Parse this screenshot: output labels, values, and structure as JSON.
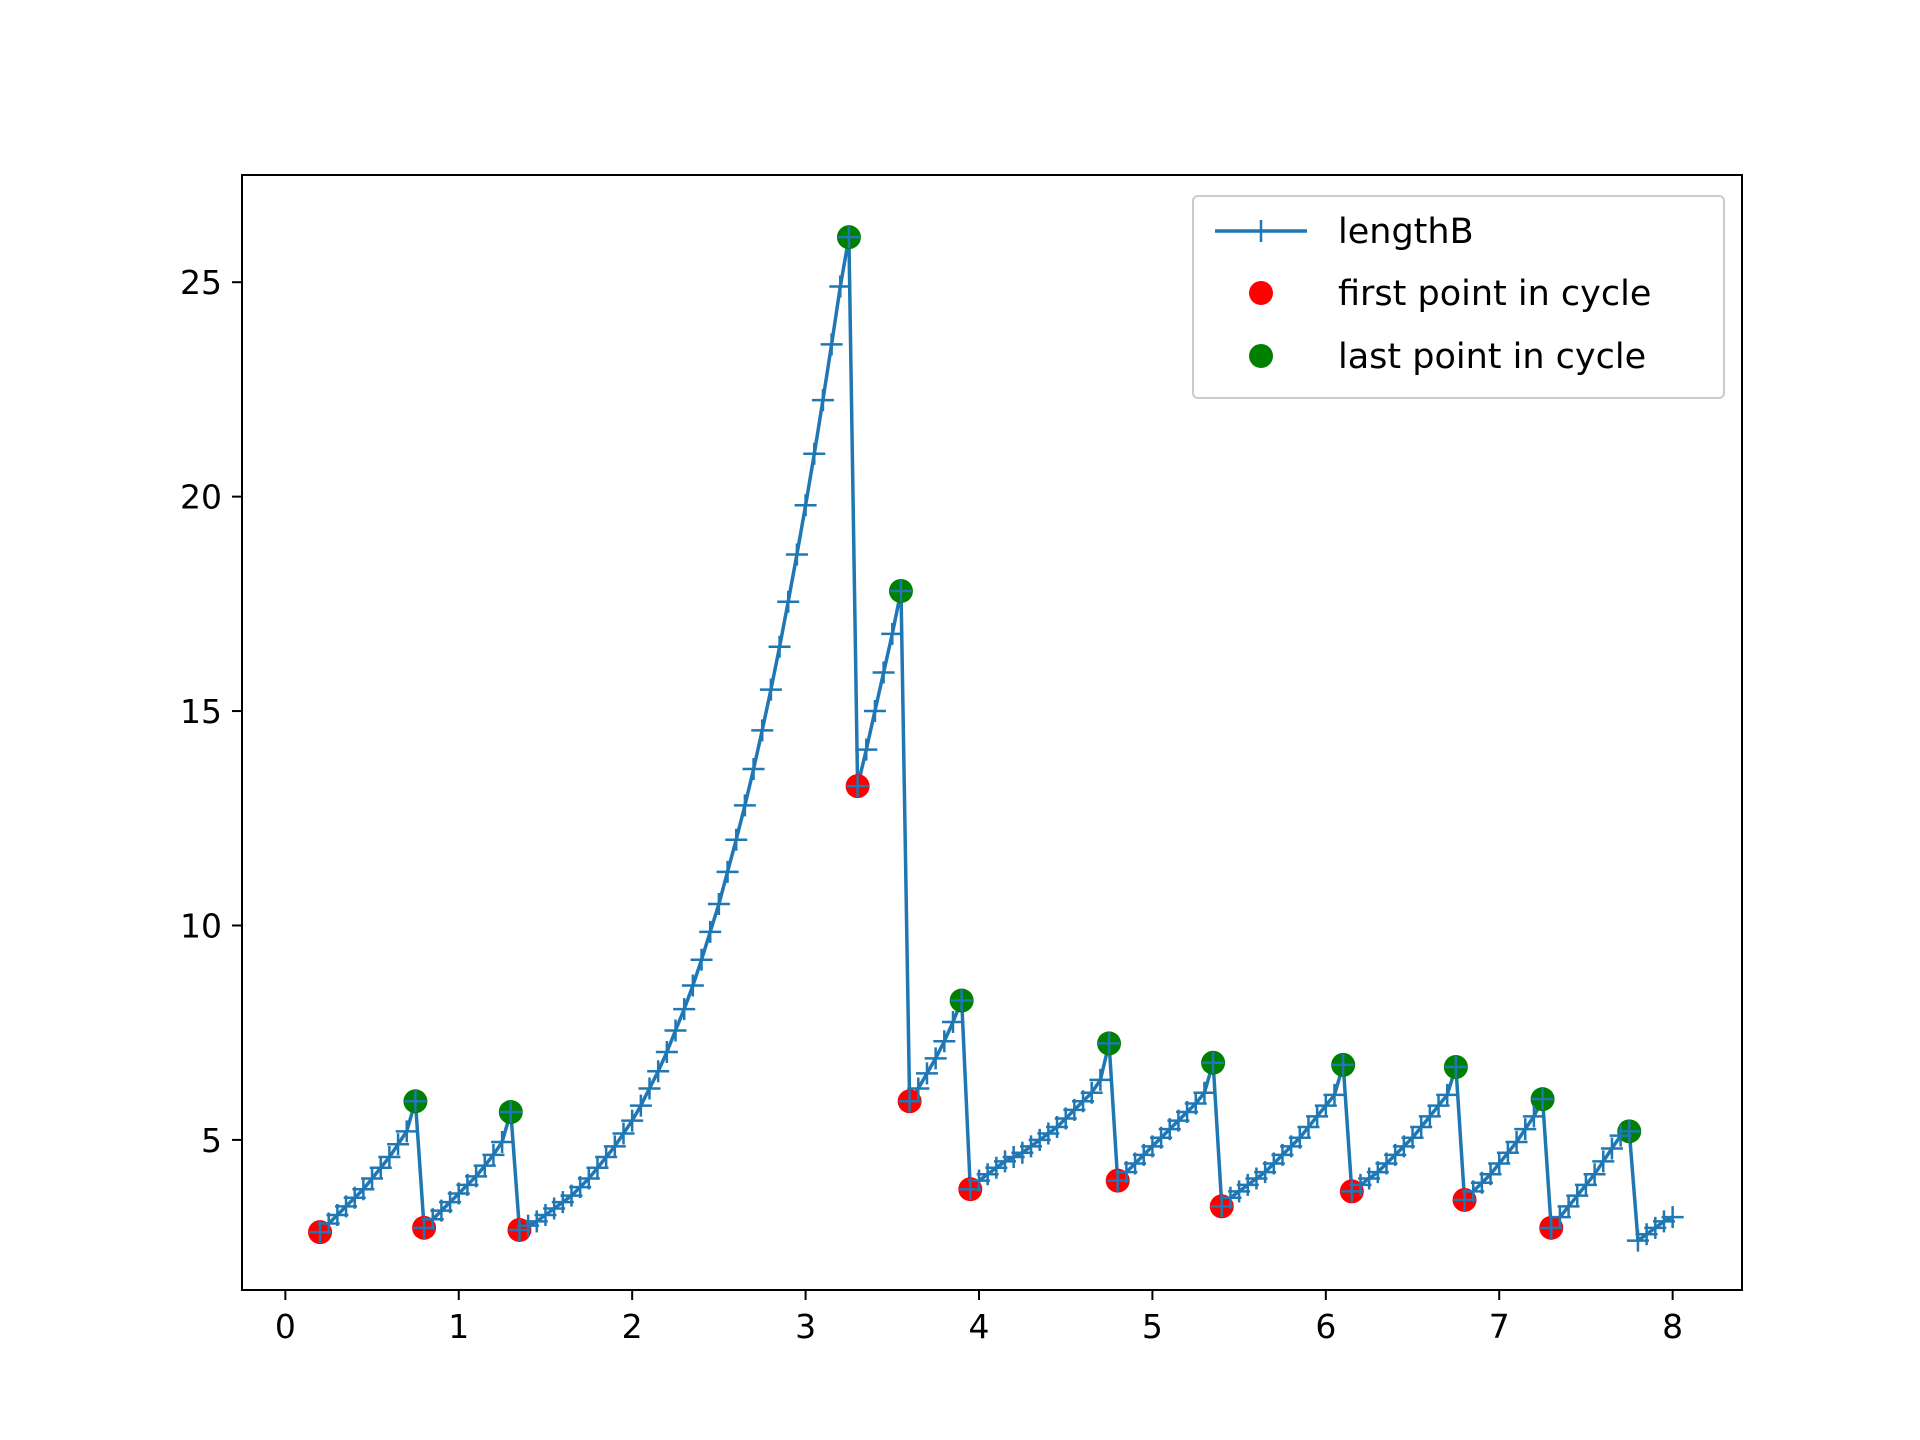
{
  "chart_data": {
    "type": "line",
    "title": "",
    "xlabel": "",
    "ylabel": "",
    "xlim": [
      -0.25,
      8.4
    ],
    "ylim": [
      1.5,
      27.5
    ],
    "x_ticks": [
      0,
      1,
      2,
      3,
      4,
      5,
      6,
      7,
      8
    ],
    "y_ticks": [
      5,
      10,
      15,
      20,
      25
    ],
    "grid": false,
    "legend_position": "top-right",
    "series": [
      {
        "name": "lengthB",
        "type": "line",
        "marker": "+",
        "color": "#1f77b4",
        "points": [
          [
            0.2,
            2.85
          ],
          [
            0.25,
            3.05
          ],
          [
            0.3,
            3.25
          ],
          [
            0.35,
            3.45
          ],
          [
            0.4,
            3.65
          ],
          [
            0.45,
            3.85
          ],
          [
            0.5,
            4.1
          ],
          [
            0.55,
            4.35
          ],
          [
            0.6,
            4.6
          ],
          [
            0.65,
            4.9
          ],
          [
            0.7,
            5.2
          ],
          [
            0.75,
            5.9
          ],
          [
            0.8,
            2.95
          ],
          [
            0.85,
            3.15
          ],
          [
            0.9,
            3.35
          ],
          [
            0.95,
            3.55
          ],
          [
            1.0,
            3.75
          ],
          [
            1.05,
            3.95
          ],
          [
            1.1,
            4.15
          ],
          [
            1.15,
            4.4
          ],
          [
            1.2,
            4.65
          ],
          [
            1.25,
            4.95
          ],
          [
            1.3,
            5.65
          ],
          [
            1.35,
            2.9
          ],
          [
            1.4,
            3.0
          ],
          [
            1.45,
            3.1
          ],
          [
            1.5,
            3.25
          ],
          [
            1.55,
            3.4
          ],
          [
            1.6,
            3.55
          ],
          [
            1.65,
            3.7
          ],
          [
            1.7,
            3.9
          ],
          [
            1.75,
            4.1
          ],
          [
            1.8,
            4.35
          ],
          [
            1.85,
            4.6
          ],
          [
            1.9,
            4.85
          ],
          [
            1.95,
            5.15
          ],
          [
            2.0,
            5.45
          ],
          [
            2.05,
            5.8
          ],
          [
            2.1,
            6.2
          ],
          [
            2.15,
            6.6
          ],
          [
            2.2,
            7.05
          ],
          [
            2.25,
            7.55
          ],
          [
            2.3,
            8.05
          ],
          [
            2.35,
            8.6
          ],
          [
            2.4,
            9.2
          ],
          [
            2.45,
            9.85
          ],
          [
            2.5,
            10.5
          ],
          [
            2.55,
            11.25
          ],
          [
            2.6,
            12.0
          ],
          [
            2.65,
            12.8
          ],
          [
            2.7,
            13.65
          ],
          [
            2.75,
            14.55
          ],
          [
            2.8,
            15.5
          ],
          [
            2.85,
            16.5
          ],
          [
            2.9,
            17.55
          ],
          [
            2.95,
            18.65
          ],
          [
            3.0,
            19.8
          ],
          [
            3.05,
            21.0
          ],
          [
            3.1,
            22.25
          ],
          [
            3.15,
            23.55
          ],
          [
            3.2,
            24.9
          ],
          [
            3.25,
            26.05
          ],
          [
            3.3,
            13.25
          ],
          [
            3.35,
            14.1
          ],
          [
            3.4,
            15.0
          ],
          [
            3.45,
            15.9
          ],
          [
            3.5,
            16.8
          ],
          [
            3.55,
            17.8
          ],
          [
            3.6,
            5.9
          ],
          [
            3.65,
            6.2
          ],
          [
            3.7,
            6.55
          ],
          [
            3.75,
            6.9
          ],
          [
            3.8,
            7.3
          ],
          [
            3.85,
            7.75
          ],
          [
            3.9,
            8.25
          ],
          [
            3.95,
            3.85
          ],
          [
            4.0,
            4.05
          ],
          [
            4.05,
            4.2
          ],
          [
            4.1,
            4.35
          ],
          [
            4.15,
            4.5
          ],
          [
            4.2,
            4.6
          ],
          [
            4.25,
            4.7
          ],
          [
            4.3,
            4.85
          ],
          [
            4.35,
            5.0
          ],
          [
            4.4,
            5.15
          ],
          [
            4.45,
            5.3
          ],
          [
            4.5,
            5.5
          ],
          [
            4.55,
            5.7
          ],
          [
            4.6,
            5.9
          ],
          [
            4.65,
            6.1
          ],
          [
            4.7,
            6.4
          ],
          [
            4.75,
            7.25
          ],
          [
            4.8,
            4.05
          ],
          [
            4.85,
            4.25
          ],
          [
            4.9,
            4.45
          ],
          [
            4.95,
            4.65
          ],
          [
            5.0,
            4.85
          ],
          [
            5.05,
            5.05
          ],
          [
            5.1,
            5.25
          ],
          [
            5.15,
            5.45
          ],
          [
            5.2,
            5.65
          ],
          [
            5.25,
            5.85
          ],
          [
            5.3,
            6.1
          ],
          [
            5.35,
            6.8
          ],
          [
            5.4,
            3.45
          ],
          [
            5.45,
            3.65
          ],
          [
            5.5,
            3.8
          ],
          [
            5.55,
            3.95
          ],
          [
            5.6,
            4.1
          ],
          [
            5.65,
            4.25
          ],
          [
            5.7,
            4.45
          ],
          [
            5.75,
            4.65
          ],
          [
            5.8,
            4.85
          ],
          [
            5.85,
            5.05
          ],
          [
            5.9,
            5.3
          ],
          [
            5.95,
            5.55
          ],
          [
            6.0,
            5.8
          ],
          [
            6.05,
            6.05
          ],
          [
            6.1,
            6.75
          ],
          [
            6.15,
            3.8
          ],
          [
            6.2,
            3.95
          ],
          [
            6.25,
            4.1
          ],
          [
            6.3,
            4.25
          ],
          [
            6.35,
            4.45
          ],
          [
            6.4,
            4.65
          ],
          [
            6.45,
            4.85
          ],
          [
            6.5,
            5.05
          ],
          [
            6.55,
            5.3
          ],
          [
            6.6,
            5.55
          ],
          [
            6.65,
            5.8
          ],
          [
            6.7,
            6.05
          ],
          [
            6.75,
            6.7
          ],
          [
            6.8,
            3.6
          ],
          [
            6.85,
            3.8
          ],
          [
            6.9,
            4.0
          ],
          [
            6.95,
            4.2
          ],
          [
            7.0,
            4.45
          ],
          [
            7.05,
            4.7
          ],
          [
            7.1,
            4.95
          ],
          [
            7.15,
            5.25
          ],
          [
            7.2,
            5.55
          ],
          [
            7.25,
            5.95
          ],
          [
            7.3,
            2.95
          ],
          [
            7.35,
            3.2
          ],
          [
            7.4,
            3.45
          ],
          [
            7.45,
            3.7
          ],
          [
            7.5,
            3.95
          ],
          [
            7.55,
            4.2
          ],
          [
            7.6,
            4.5
          ],
          [
            7.65,
            4.8
          ],
          [
            7.7,
            5.1
          ],
          [
            7.75,
            5.2
          ],
          [
            7.8,
            2.65
          ],
          [
            7.85,
            2.8
          ],
          [
            7.9,
            2.95
          ],
          [
            7.95,
            3.1
          ],
          [
            8.0,
            3.2
          ]
        ]
      },
      {
        "name": "first point in cycle",
        "type": "scatter",
        "color": "#ff0000",
        "points": [
          [
            0.2,
            2.85
          ],
          [
            0.8,
            2.95
          ],
          [
            1.35,
            2.9
          ],
          [
            3.3,
            13.25
          ],
          [
            3.6,
            5.9
          ],
          [
            3.95,
            3.85
          ],
          [
            4.8,
            4.05
          ],
          [
            5.4,
            3.45
          ],
          [
            6.15,
            3.8
          ],
          [
            6.8,
            3.6
          ],
          [
            7.3,
            2.95
          ]
        ]
      },
      {
        "name": "last point in cycle",
        "type": "scatter",
        "color": "#008000",
        "points": [
          [
            0.75,
            5.9
          ],
          [
            1.3,
            5.65
          ],
          [
            3.25,
            26.05
          ],
          [
            3.55,
            17.8
          ],
          [
            3.9,
            8.25
          ],
          [
            4.75,
            7.25
          ],
          [
            5.35,
            6.8
          ],
          [
            6.1,
            6.75
          ],
          [
            6.75,
            6.7
          ],
          [
            7.25,
            5.95
          ],
          [
            7.75,
            5.2
          ]
        ]
      }
    ]
  }
}
